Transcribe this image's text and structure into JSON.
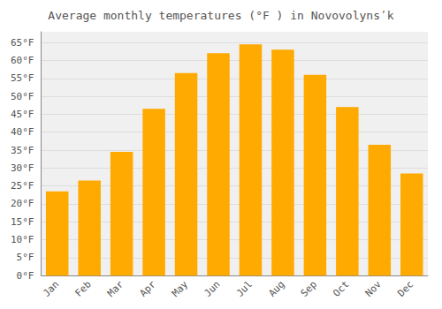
{
  "chart_data": {
    "type": "bar",
    "title": "Average monthly temperatures (°F ) in Novovolynsʹk",
    "categories": [
      "Jan",
      "Feb",
      "Mar",
      "Apr",
      "May",
      "Jun",
      "Jul",
      "Aug",
      "Sep",
      "Oct",
      "Nov",
      "Dec"
    ],
    "values": [
      23.5,
      26.5,
      34.5,
      46.5,
      56.5,
      62.0,
      64.5,
      63.0,
      56.0,
      47.0,
      36.5,
      28.5
    ],
    "color": "#FFAA00",
    "ylim": [
      0,
      68
    ],
    "yticks": [
      {
        "value": 0,
        "label": "0°F"
      },
      {
        "value": 5,
        "label": "5°F"
      },
      {
        "value": 10,
        "label": "10°F"
      },
      {
        "value": 15,
        "label": "15°F"
      },
      {
        "value": 20,
        "label": "20°F"
      },
      {
        "value": 25,
        "label": "25°F"
      },
      {
        "value": 30,
        "label": "30°F"
      },
      {
        "value": 35,
        "label": "35°F"
      },
      {
        "value": 40,
        "label": "40°F"
      },
      {
        "value": 45,
        "label": "45°F"
      },
      {
        "value": 50,
        "label": "50°F"
      },
      {
        "value": 55,
        "label": "55°F"
      },
      {
        "value": 60,
        "label": "60°F"
      },
      {
        "value": 65,
        "label": "65°F"
      }
    ],
    "grid": true
  }
}
